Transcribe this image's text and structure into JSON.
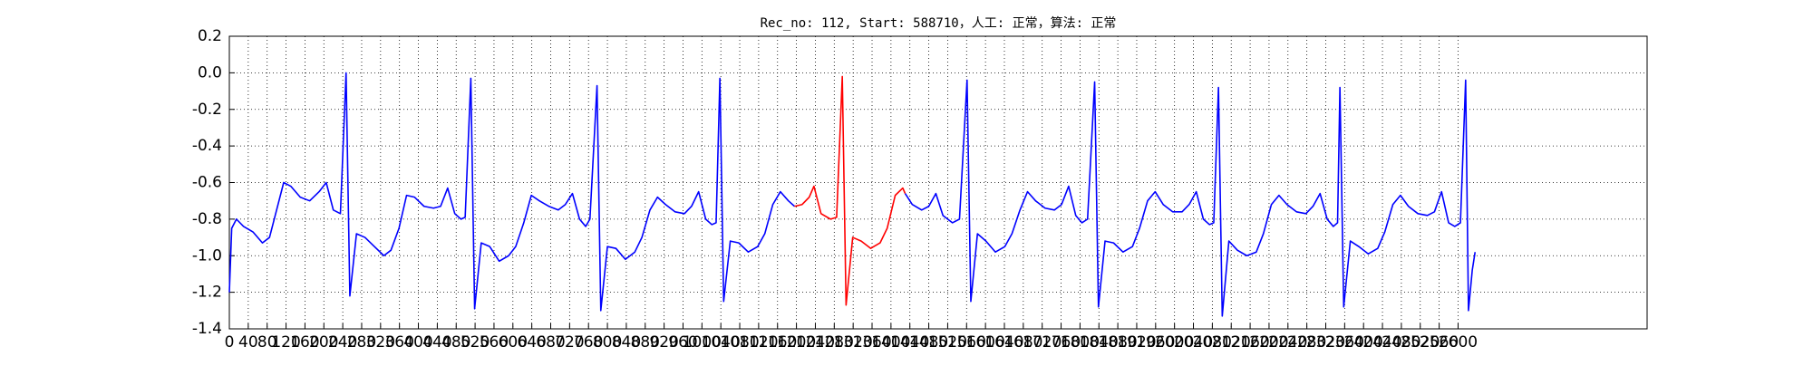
{
  "chart_data": {
    "type": "line",
    "title": "Rec_no: 112, Start: 588710，人工: 正常，算法: 正常",
    "xlim": [
      0,
      3000
    ],
    "ylim": [
      -1.4,
      0.2
    ],
    "xticks": [
      0,
      40,
      80,
      120,
      160,
      200,
      240,
      280,
      320,
      360,
      400,
      440,
      480,
      520,
      560,
      600,
      640,
      680,
      720,
      760,
      800,
      840,
      880,
      920,
      960,
      1000,
      1040,
      1080,
      1120,
      1160,
      1200,
      1240,
      1280,
      1320,
      1360,
      1400,
      1440,
      1480,
      1520,
      1560,
      1600,
      1640,
      1680,
      1720,
      1760,
      1800,
      1840,
      1880,
      1920,
      1960,
      2000,
      2040,
      2080,
      2120,
      2160,
      2200,
      2240,
      2280,
      2320,
      2360,
      2400,
      2440,
      2480,
      2520,
      2560,
      2600
    ],
    "yticks": [
      0.2,
      {
        "value": 0,
        "label": "0.0"
      },
      -0.2,
      -0.4,
      -0.6,
      -0.8,
      {
        "value": -1,
        "label": "-1.0"
      },
      -1.2,
      -1.4
    ],
    "grid": true,
    "series": [
      {
        "color": "#0000ff",
        "x": [
          0,
          5,
          15,
          30,
          50,
          70,
          85,
          100,
          115,
          130,
          150,
          170,
          190,
          205,
          220,
          235,
          247,
          255,
          269,
          287,
          307,
          327,
          342,
          359,
          375,
          392,
          412,
          432,
          447,
          462,
          477,
          490,
          499,
          511,
          519,
          533,
          551,
          571,
          591,
          606,
          623,
          639,
          656,
          676,
          696,
          711,
          726,
          741,
          754,
          763,
          778,
          786,
          800,
          818,
          838,
          858,
          873,
          890,
          906,
          923,
          943,
          963,
          978,
          993,
          1008,
          1021,
          1030,
          1038,
          1046,
          1060,
          1078,
          1098,
          1118,
          1133,
          1150,
          1166,
          1183,
          1196,
          1297,
          1430,
          1445,
          1465,
          1480,
          1495,
          1510,
          1530,
          1545,
          1561,
          1569,
          1583,
          1601,
          1621,
          1641,
          1656,
          1673,
          1689,
          1706,
          1726,
          1746,
          1761,
          1776,
          1791,
          1804,
          1816,
          1831,
          1839,
          1853,
          1871,
          1891,
          1911,
          1926,
          1943,
          1959,
          1976,
          1996,
          2016,
          2031,
          2046,
          2061,
          2074,
          2083,
          2093,
          2101,
          2115,
          2133,
          2153,
          2173,
          2188,
          2205,
          2221,
          2238,
          2258,
          2278,
          2293,
          2308,
          2323,
          2336,
          2345,
          2350,
          2358,
          2372,
          2390,
          2410,
          2430,
          2445,
          2462,
          2478,
          2495,
          2515,
          2535,
          2550,
          2565,
          2580,
          2593,
          2605,
          2616,
          2622,
          2630,
          2636
        ],
        "values": [
          -1.2,
          -0.85,
          -0.8,
          -0.84,
          -0.87,
          -0.93,
          -0.9,
          -0.75,
          -0.6,
          -0.62,
          -0.68,
          -0.7,
          -0.65,
          -0.6,
          -0.75,
          -0.77,
          0.0,
          -1.22,
          -0.88,
          -0.9,
          -0.95,
          -1.0,
          -0.97,
          -0.85,
          -0.67,
          -0.68,
          -0.73,
          -0.74,
          -0.73,
          -0.63,
          -0.77,
          -0.8,
          -0.79,
          -0.03,
          -1.29,
          -0.93,
          -0.95,
          -1.03,
          -1.0,
          -0.95,
          -0.82,
          -0.67,
          -0.7,
          -0.73,
          -0.75,
          -0.72,
          -0.66,
          -0.8,
          -0.84,
          -0.8,
          -0.07,
          -1.3,
          -0.95,
          -0.96,
          -1.02,
          -0.98,
          -0.9,
          -0.75,
          -0.68,
          -0.72,
          -0.76,
          -0.77,
          -0.73,
          -0.65,
          -0.8,
          -0.83,
          -0.82,
          -0.03,
          -1.25,
          -0.92,
          -0.93,
          -0.98,
          -0.95,
          -0.88,
          -0.72,
          -0.65,
          -0.7,
          -0.73,
          null,
          -0.66,
          -0.72,
          -0.75,
          -0.73,
          -0.66,
          -0.78,
          -0.82,
          -0.8,
          -0.04,
          -1.25,
          -0.88,
          -0.92,
          -0.98,
          -0.95,
          -0.88,
          -0.75,
          -0.65,
          -0.7,
          -0.74,
          -0.75,
          -0.72,
          -0.62,
          -0.78,
          -0.82,
          -0.8,
          -0.05,
          -1.28,
          -0.92,
          -0.93,
          -0.98,
          -0.95,
          -0.85,
          -0.7,
          -0.65,
          -0.72,
          -0.76,
          -0.76,
          -0.72,
          -0.65,
          -0.8,
          -0.83,
          -0.82,
          -0.08,
          -1.33,
          -0.92,
          -0.97,
          -1.0,
          -0.98,
          -0.88,
          -0.72,
          -0.67,
          -0.72,
          -0.76,
          -0.77,
          -0.73,
          -0.66,
          -0.8,
          -0.84,
          -0.82,
          -0.08,
          -1.28,
          -0.92,
          -0.95,
          -0.99,
          -0.96,
          -0.87,
          -0.72,
          -0.67,
          -0.73,
          -0.77,
          -0.78,
          -0.76,
          -0.65,
          -0.82,
          -0.84,
          -0.82,
          -0.04,
          -1.3,
          -1.08,
          -0.98
        ]
      },
      {
        "color": "#ff0000",
        "x": [
          1196,
          1212,
          1227,
          1237,
          1252,
          1272,
          1285,
          1297,
          1305,
          1319,
          1337,
          1357,
          1377,
          1392,
          1409,
          1425,
          1430
        ],
        "values": [
          -0.73,
          -0.72,
          -0.68,
          -0.62,
          -0.77,
          -0.8,
          -0.79,
          -0.02,
          -1.27,
          -0.9,
          -0.92,
          -0.96,
          -0.93,
          -0.85,
          -0.67,
          -0.63,
          -0.66
        ]
      }
    ]
  }
}
